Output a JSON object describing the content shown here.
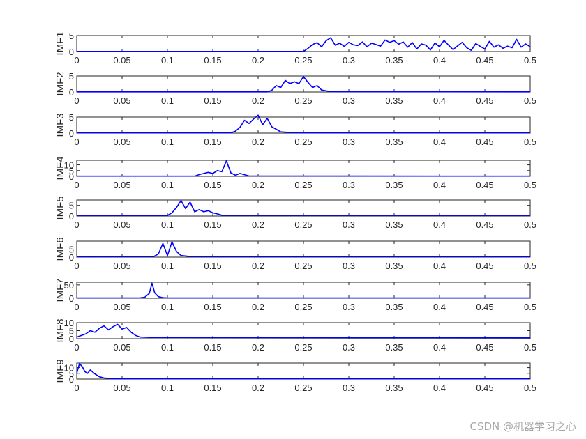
{
  "watermark": "CSDN @机器学习之心",
  "line_color": "#0000ff",
  "chart_data": [
    {
      "type": "line",
      "ylabel": "IMF1",
      "xlim": [
        0,
        0.5
      ],
      "ylim": [
        0,
        5
      ],
      "yticks": [
        0,
        5
      ],
      "xticks": [
        0,
        0.05,
        0.1,
        0.15,
        0.2,
        0.25,
        0.3,
        0.35,
        0.4,
        0.45,
        0.5
      ],
      "xtick_labels": [
        "0",
        "0.05",
        "0.1",
        "0.15",
        "0.2",
        "0.25",
        "0.3",
        "0.35",
        "0.4",
        "0.45",
        "0.5"
      ],
      "series": [
        {
          "x": [
            0,
            0.25,
            0.255,
            0.26,
            0.265,
            0.27,
            0.275,
            0.28,
            0.285,
            0.29,
            0.295,
            0.3,
            0.305,
            0.31,
            0.315,
            0.32,
            0.325,
            0.33,
            0.335,
            0.34,
            0.345,
            0.35,
            0.355,
            0.36,
            0.365,
            0.37,
            0.375,
            0.38,
            0.385,
            0.39,
            0.395,
            0.4,
            0.405,
            0.41,
            0.415,
            0.42,
            0.425,
            0.43,
            0.435,
            0.44,
            0.445,
            0.45,
            0.455,
            0.46,
            0.465,
            0.47,
            0.475,
            0.48,
            0.485,
            0.49,
            0.495,
            0.5
          ],
          "y": [
            0.05,
            0.05,
            1.0,
            2.2,
            2.8,
            1.5,
            3.4,
            4.3,
            2.0,
            2.6,
            1.6,
            2.9,
            2.1,
            1.9,
            3.0,
            1.5,
            2.6,
            2.2,
            1.7,
            3.6,
            2.9,
            3.4,
            2.3,
            3.0,
            1.4,
            2.8,
            0.8,
            2.4,
            2.0,
            0.5,
            2.7,
            1.5,
            3.5,
            2.0,
            0.6,
            1.8,
            2.9,
            1.2,
            0.4,
            2.5,
            1.6,
            0.8,
            3.2,
            1.4,
            2.1,
            1.0,
            1.7,
            1.2,
            3.8,
            1.4,
            2.4,
            1.5
          ]
        }
      ]
    },
    {
      "type": "line",
      "ylabel": "IMF2",
      "xlim": [
        0,
        0.5
      ],
      "ylim": [
        0,
        5
      ],
      "yticks": [
        0,
        5
      ],
      "xticks": [
        0,
        0.05,
        0.1,
        0.15,
        0.2,
        0.25,
        0.3,
        0.35,
        0.4,
        0.45,
        0.5
      ],
      "xtick_labels": [
        "0",
        "0.05",
        "0.1",
        "0.15",
        "0.2",
        "0.25",
        "0.3",
        "0.35",
        "0.4",
        "0.45",
        "0.5"
      ],
      "series": [
        {
          "x": [
            0,
            0.21,
            0.215,
            0.22,
            0.225,
            0.23,
            0.235,
            0.24,
            0.245,
            0.25,
            0.255,
            0.26,
            0.265,
            0.27,
            0.28,
            0.5
          ],
          "y": [
            0.05,
            0.05,
            0.5,
            2.0,
            1.4,
            3.6,
            2.6,
            3.2,
            2.6,
            4.8,
            3.0,
            1.4,
            2.0,
            0.6,
            0.1,
            0.05
          ]
        }
      ]
    },
    {
      "type": "line",
      "ylabel": "IMF3",
      "xlim": [
        0,
        0.5
      ],
      "ylim": [
        0,
        5
      ],
      "yticks": [
        0,
        5
      ],
      "xticks": [
        0,
        0.05,
        0.1,
        0.15,
        0.2,
        0.25,
        0.3,
        0.35,
        0.4,
        0.45,
        0.5
      ],
      "xtick_labels": [
        "0",
        "0.05",
        "0.1",
        "0.15",
        "0.2",
        "0.25",
        "0.3",
        "0.35",
        "0.4",
        "0.45",
        "0.5"
      ],
      "series": [
        {
          "x": [
            0,
            0.17,
            0.175,
            0.18,
            0.185,
            0.19,
            0.195,
            0.2,
            0.205,
            0.21,
            0.215,
            0.22,
            0.225,
            0.24,
            0.5
          ],
          "y": [
            0.1,
            0.1,
            0.6,
            1.8,
            4.0,
            3.0,
            4.4,
            5.6,
            2.6,
            4.6,
            2.0,
            1.2,
            0.4,
            0.1,
            0.1
          ]
        }
      ]
    },
    {
      "type": "line",
      "ylabel": "IMF4",
      "xlim": [
        0,
        0.5
      ],
      "ylim": [
        0,
        14
      ],
      "yticks": [
        0,
        5,
        10
      ],
      "xticks": [
        0,
        0.05,
        0.1,
        0.15,
        0.2,
        0.25,
        0.3,
        0.35,
        0.4,
        0.45,
        0.5
      ],
      "xtick_labels": [
        "0",
        "0.05",
        "0.1",
        "0.15",
        "0.2",
        "0.25",
        "0.3",
        "0.35",
        "0.4",
        "0.45",
        "0.5"
      ],
      "series": [
        {
          "x": [
            0,
            0.13,
            0.135,
            0.14,
            0.145,
            0.15,
            0.155,
            0.16,
            0.165,
            0.17,
            0.175,
            0.18,
            0.19,
            0.5
          ],
          "y": [
            0.2,
            0.2,
            1.5,
            2.5,
            3.5,
            2.5,
            5.0,
            4.0,
            13.5,
            3.0,
            1.0,
            2.5,
            0.3,
            0.2
          ]
        }
      ]
    },
    {
      "type": "line",
      "ylabel": "IMF5",
      "xlim": [
        0,
        0.5
      ],
      "ylim": [
        0,
        7.5
      ],
      "yticks": [
        0,
        5
      ],
      "xticks": [
        0,
        0.05,
        0.1,
        0.15,
        0.2,
        0.25,
        0.3,
        0.35,
        0.4,
        0.45,
        0.5
      ],
      "xtick_labels": [
        "0",
        "0.05",
        "0.1",
        "0.15",
        "0.2",
        "0.25",
        "0.3",
        "0.35",
        "0.4",
        "0.45",
        "0.5"
      ],
      "series": [
        {
          "x": [
            0,
            0.1,
            0.105,
            0.11,
            0.115,
            0.12,
            0.125,
            0.13,
            0.135,
            0.14,
            0.145,
            0.15,
            0.155,
            0.16,
            0.5
          ],
          "y": [
            0.3,
            0.3,
            1.5,
            4.0,
            7.2,
            3.5,
            6.5,
            2.0,
            3.0,
            2.0,
            2.5,
            1.5,
            1.0,
            0.4,
            0.3
          ]
        }
      ]
    },
    {
      "type": "line",
      "ylabel": "IMF6",
      "xlim": [
        0,
        0.5
      ],
      "ylim": [
        0,
        10
      ],
      "yticks": [
        0,
        5
      ],
      "xticks": [
        0,
        0.05,
        0.1,
        0.15,
        0.2,
        0.25,
        0.3,
        0.35,
        0.4,
        0.45,
        0.5
      ],
      "xtick_labels": [
        "0",
        "0.05",
        "0.1",
        "0.15",
        "0.2",
        "0.25",
        "0.3",
        "0.35",
        "0.4",
        "0.45",
        "0.5"
      ],
      "series": [
        {
          "x": [
            0,
            0.085,
            0.09,
            0.095,
            0.1,
            0.105,
            0.11,
            0.115,
            0.125,
            0.5
          ],
          "y": [
            0.3,
            0.4,
            2.0,
            8.5,
            1.0,
            9.5,
            3.5,
            1.0,
            0.4,
            0.3
          ]
        }
      ]
    },
    {
      "type": "line",
      "ylabel": "IMF7",
      "xlim": [
        0,
        0.5
      ],
      "ylim": [
        0,
        60
      ],
      "yticks": [
        0,
        50
      ],
      "xticks": [
        0,
        0.05,
        0.1,
        0.15,
        0.2,
        0.25,
        0.3,
        0.35,
        0.4,
        0.45,
        0.5
      ],
      "xtick_labels": [
        "0",
        "0.05",
        "0.1",
        "0.15",
        "0.2",
        "0.25",
        "0.3",
        "0.35",
        "0.4",
        "0.45",
        "0.5"
      ],
      "series": [
        {
          "x": [
            0,
            0.07,
            0.075,
            0.08,
            0.083,
            0.086,
            0.09,
            0.095,
            0.1,
            0.5
          ],
          "y": [
            1,
            1.5,
            4,
            18,
            56,
            20,
            6,
            2,
            1,
            1
          ]
        }
      ]
    },
    {
      "type": "line",
      "ylabel": "IMF8",
      "xlim": [
        0,
        0.5
      ],
      "ylim": [
        0,
        10
      ],
      "yticks": [
        0,
        5,
        10
      ],
      "xticks": [
        0,
        0.05,
        0.1,
        0.15,
        0.2,
        0.25,
        0.3,
        0.35,
        0.4,
        0.45,
        0.5
      ],
      "xtick_labels": [
        "0",
        "0.05",
        "0.1",
        "0.15",
        "0.2",
        "0.25",
        "0.3",
        "0.35",
        "0.4",
        "0.45",
        "0.5"
      ],
      "series": [
        {
          "x": [
            0,
            0.005,
            0.01,
            0.015,
            0.02,
            0.025,
            0.03,
            0.035,
            0.04,
            0.045,
            0.05,
            0.055,
            0.06,
            0.065,
            0.07,
            0.08,
            0.5
          ],
          "y": [
            1.0,
            2.0,
            3.0,
            5.0,
            4.0,
            6.5,
            8.0,
            5.5,
            7.5,
            9.0,
            6.0,
            7.0,
            4.0,
            2.0,
            1.0,
            0.8,
            0.6
          ]
        }
      ]
    },
    {
      "type": "line",
      "ylabel": "IMF9",
      "xlim": [
        0,
        0.5
      ],
      "ylim": [
        0,
        14
      ],
      "yticks": [
        0,
        5,
        10
      ],
      "xticks": [
        0,
        0.05,
        0.1,
        0.15,
        0.2,
        0.25,
        0.3,
        0.35,
        0.4,
        0.45,
        0.5
      ],
      "xtick_labels": [
        "0",
        "0.05",
        "0.1",
        "0.15",
        "0.2",
        "0.25",
        "0.3",
        "0.35",
        "0.4",
        "0.45",
        "0.5"
      ],
      "series": [
        {
          "x": [
            0,
            0.003,
            0.006,
            0.009,
            0.012,
            0.015,
            0.02,
            0.025,
            0.03,
            0.04,
            0.5
          ],
          "y": [
            5,
            13.5,
            11,
            6.5,
            5,
            8,
            4.5,
            2,
            1,
            0.3,
            0.3
          ]
        }
      ]
    }
  ]
}
